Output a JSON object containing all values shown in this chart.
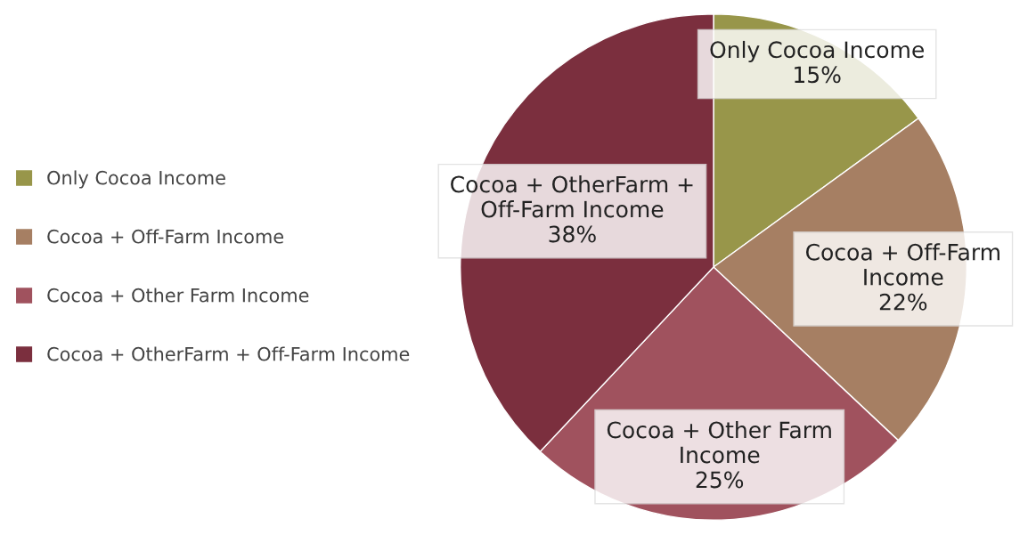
{
  "chart_data": {
    "type": "pie",
    "categories": [
      "Only Cocoa Income",
      "Cocoa + Off-Farm Income",
      "Cocoa + Other Farm Income",
      "Cocoa + OtherFarm + Off-Farm Income"
    ],
    "values": [
      15,
      22,
      25,
      38
    ],
    "value_labels": [
      "15%",
      "22%",
      "25%",
      "38%"
    ],
    "colors": [
      "#98964a",
      "#a67f63",
      "#a0525e",
      "#7b2f3e"
    ],
    "legend": "left"
  }
}
